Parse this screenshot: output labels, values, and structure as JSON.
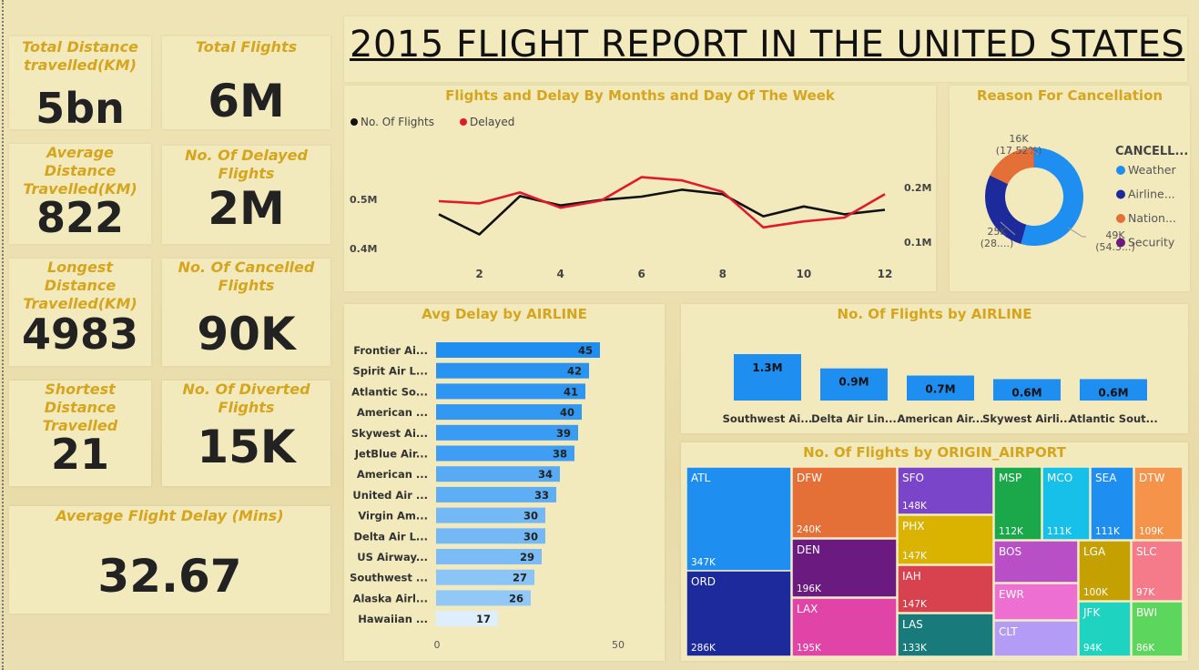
{
  "title": "2015 FLIGHT REPORT IN THE UNITED STATES",
  "kpis": {
    "total_distance_label": "Total Distance travelled(KM)",
    "total_distance_value": "5bn",
    "total_flights_label": "Total Flights",
    "total_flights_value": "6M",
    "avg_distance_label": "Average Distance Travelled(KM)",
    "avg_distance_value": "822",
    "delayed_label": "No. Of Delayed Flights",
    "delayed_value": "2M",
    "longest_label": "Longest Distance Travelled(KM)",
    "longest_value": "4983",
    "cancelled_label": "No. Of Cancelled Flights",
    "cancelled_value": "90K",
    "shortest_label": "Shortest Distance Travelled",
    "shortest_value": "21",
    "diverted_label": "No. Of Diverted Flights",
    "diverted_value": "15K",
    "avg_delay_label": "Average Flight Delay (Mins)",
    "avg_delay_value": "32.67"
  },
  "chart_data": [
    {
      "type": "line",
      "title": "Flights and Delay By Months and Day Of The Week",
      "x": [
        1,
        2,
        3,
        4,
        5,
        6,
        7,
        8,
        9,
        10,
        11,
        12
      ],
      "x_ticks": [
        "2",
        "4",
        "6",
        "8",
        "10",
        "12"
      ],
      "y_left_ticks": [
        "0.5M",
        "0.4M"
      ],
      "y_right_ticks": [
        "0.2M",
        "0.1M"
      ],
      "y_left_range": [
        0.38,
        0.58
      ],
      "y_right_range": [
        0.07,
        0.25
      ],
      "series": [
        {
          "name": "No. Of Flights",
          "axis": "left",
          "color": "#111111",
          "values": [
            0.47,
            0.429,
            0.507,
            0.488,
            0.499,
            0.506,
            0.52,
            0.511,
            0.466,
            0.486,
            0.47,
            0.479
          ]
        },
        {
          "name": "Delayed",
          "axis": "right",
          "color": "#e0192e",
          "values": [
            0.175,
            0.171,
            0.191,
            0.163,
            0.176,
            0.219,
            0.213,
            0.192,
            0.127,
            0.138,
            0.145,
            0.188
          ]
        }
      ],
      "legend": "top-left"
    },
    {
      "type": "pie",
      "title": "Reason For Cancellation",
      "legend_title": "CANCELL...",
      "slices": [
        {
          "name": "Weather",
          "value": 49,
          "color": "#1f8ef1",
          "label": "49K",
          "pct": "(54.3...)"
        },
        {
          "name": "Airline...",
          "value": 25,
          "color": "#1c2a9c",
          "label": "25K",
          "pct": "(28....)"
        },
        {
          "name": "Nation...",
          "value": 16,
          "color": "#e46f37",
          "label": "16K",
          "pct": "(17.52%)"
        },
        {
          "name": "Security",
          "value": 0.1,
          "color": "#6b1a80",
          "label": "",
          "pct": ""
        }
      ]
    },
    {
      "type": "bar",
      "orientation": "horizontal",
      "title": "Avg Delay by AIRLINE",
      "categories": [
        "Frontier Ai...",
        "Spirit Air L...",
        "Atlantic So...",
        "American ...",
        "Skywest Ai...",
        "JetBlue Air...",
        "American ...",
        "United Air ...",
        "Virgin Am...",
        "Delta Air L...",
        "US Airway...",
        "Southwest ...",
        "Alaska Airl...",
        "Hawaiian ..."
      ],
      "values": [
        45,
        42,
        41,
        40,
        39,
        38,
        34,
        33,
        30,
        30,
        29,
        27,
        26,
        17
      ],
      "xlim": [
        0,
        50
      ],
      "x_ticks": [
        "0",
        "50"
      ]
    },
    {
      "type": "bar",
      "title": "No. Of Flights by AIRLINE",
      "categories": [
        "Southwest Ai...",
        "Delta Air Lin...",
        "American Air...",
        "Skywest Airli...",
        "Atlantic Sout..."
      ],
      "values": [
        1.3,
        0.9,
        0.7,
        0.6,
        0.6
      ],
      "labels": [
        "1.3M",
        "0.9M",
        "0.7M",
        "0.6M",
        "0.6M"
      ],
      "color": "#1f8ef1"
    },
    {
      "type": "heatmap",
      "subtype": "treemap",
      "title": "No. Of Flights by ORIGIN_AIRPORT",
      "cells": [
        {
          "name": "ATL",
          "label": "347K",
          "color": "#1f8ef1"
        },
        {
          "name": "ORD",
          "label": "286K",
          "color": "#1c2a9c"
        },
        {
          "name": "DFW",
          "label": "240K",
          "color": "#e46f37"
        },
        {
          "name": "DEN",
          "label": "196K",
          "color": "#6b1a80"
        },
        {
          "name": "LAX",
          "label": "195K",
          "color": "#e044a7"
        },
        {
          "name": "SFO",
          "label": "148K",
          "color": "#7b45c9"
        },
        {
          "name": "PHX",
          "label": "147K",
          "color": "#d9b300"
        },
        {
          "name": "IAH",
          "label": "147K",
          "color": "#d8414e"
        },
        {
          "name": "LAS",
          "label": "133K",
          "color": "#187a7a"
        },
        {
          "name": "MSP",
          "label": "112K",
          "color": "#1aa84a"
        },
        {
          "name": "MCO",
          "label": "111K",
          "color": "#17c0e8"
        },
        {
          "name": "SEA",
          "label": "111K",
          "color": "#1f8ef1"
        },
        {
          "name": "DTW",
          "label": "109K",
          "color": "#f5934a"
        },
        {
          "name": "BOS",
          "label": "",
          "color": "#b94fc6"
        },
        {
          "name": "EWR",
          "label": "",
          "color": "#ee6fd2"
        },
        {
          "name": "CLT",
          "label": "",
          "color": "#b39cf5"
        },
        {
          "name": "LGA",
          "label": "100K",
          "color": "#c4a100"
        },
        {
          "name": "SLC",
          "label": "97K",
          "color": "#f57b8a"
        },
        {
          "name": "JFK",
          "label": "94K",
          "color": "#1ed4c0"
        },
        {
          "name": "BWI",
          "label": "86K",
          "color": "#5cd65c"
        }
      ]
    }
  ]
}
